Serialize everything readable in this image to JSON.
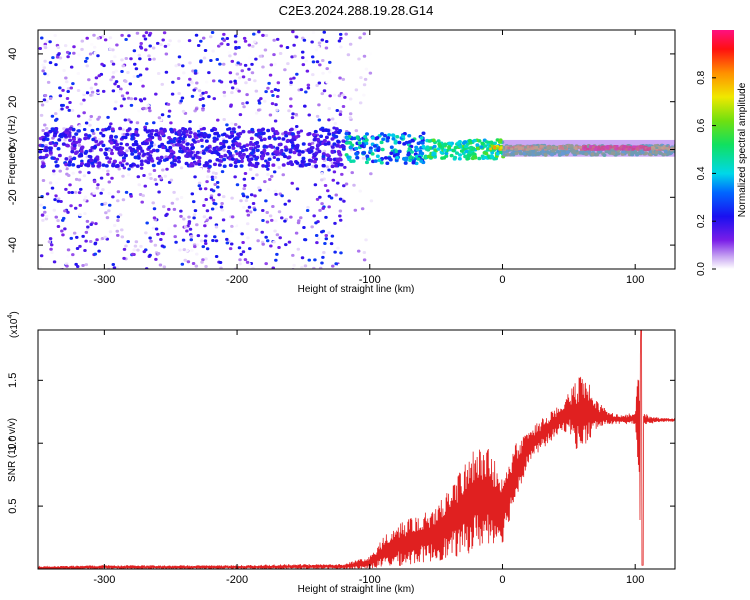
{
  "title": "C2E3.2024.288.19.28.G14",
  "chart_data": [
    {
      "type": "heatmap",
      "title": "C2E3.2024.288.19.28.G14",
      "xlabel": "Height of straight line (km)",
      "ylabel": "Frequency (Hz)",
      "xlim": [
        -350,
        130
      ],
      "ylim": [
        -50,
        50
      ],
      "x_ticks": [
        -300,
        -200,
        -100,
        0,
        100
      ],
      "x_tick_labels": [
        "-300",
        "-200",
        "-100",
        "0",
        "100"
      ],
      "y_ticks": [
        -40,
        -20,
        0,
        20,
        40
      ],
      "y_tick_labels": [
        "-40",
        "-20",
        "0",
        "20",
        "40"
      ],
      "colorbar": {
        "label": "Normalized spectral amplitude",
        "range": [
          0,
          1
        ],
        "ticks": [
          0.0,
          0.2,
          0.4,
          0.6,
          0.8
        ],
        "tick_labels": [
          "0.0",
          "0.2",
          "0.4",
          "0.6",
          "0.8"
        ],
        "colormap": "rainbow"
      },
      "regions": [
        {
          "x_range": [
            -350,
            -120
          ],
          "freq_range": [
            -50,
            50
          ],
          "amplitude": "low (0.0-0.3), diffuse noise"
        },
        {
          "x_range": [
            -120,
            -60
          ],
          "freq_range": [
            -10,
            10
          ],
          "amplitude": "0.2-0.5"
        },
        {
          "x_range": [
            -60,
            0
          ],
          "freq_range": [
            -5,
            6
          ],
          "amplitude": "0.4-0.6"
        },
        {
          "x_range": [
            0,
            130
          ],
          "freq_range": [
            -2,
            4
          ],
          "amplitude": "0.5-1.0, peak near +1 Hz"
        }
      ],
      "grid": false,
      "legend": "colorbar-right"
    },
    {
      "type": "line",
      "xlabel": "Height of straight line (km)",
      "ylabel": "SNR (10 * v/v)",
      "y_multiplier_label": "(x10",
      "y_multiplier_exp": "4",
      "y_multiplier_close": ")",
      "xlim": [
        -350,
        130
      ],
      "ylim": [
        0,
        1.9
      ],
      "x_ticks": [
        -300,
        -200,
        -100,
        0,
        100
      ],
      "x_tick_labels": [
        "-300",
        "-200",
        "-100",
        "0",
        "100"
      ],
      "y_ticks": [
        0.5,
        1.0,
        1.5
      ],
      "y_tick_labels": [
        "0.5",
        "1.0",
        "1.5"
      ],
      "series": [
        {
          "color": "#e02020",
          "x": [
            -350,
            -300,
            -250,
            -200,
            -150,
            -120,
            -100,
            -90,
            -80,
            -70,
            -60,
            -50,
            -40,
            -30,
            -20,
            -10,
            0,
            10,
            20,
            30,
            40,
            50,
            55,
            60,
            65,
            70,
            80,
            90,
            100,
            104,
            106,
            110,
            120,
            130
          ],
          "y_low": [
            0.0,
            0.0,
            0.0,
            0.0,
            0.0,
            0.0,
            0.0,
            0.01,
            0.02,
            0.03,
            0.05,
            0.06,
            0.08,
            0.1,
            0.15,
            0.2,
            0.2,
            0.55,
            0.85,
            0.95,
            1.05,
            1.1,
            0.95,
            0.95,
            1.0,
            1.1,
            1.15,
            1.15,
            1.15,
            0.0,
            1.15,
            1.15,
            1.17,
            1.17
          ],
          "y_high": [
            0.02,
            0.03,
            0.03,
            0.03,
            0.04,
            0.04,
            0.1,
            0.25,
            0.35,
            0.4,
            0.45,
            0.5,
            0.65,
            0.82,
            1.0,
            0.95,
            0.8,
            1.0,
            1.1,
            1.2,
            1.28,
            1.4,
            1.5,
            1.55,
            1.5,
            1.35,
            1.25,
            1.22,
            1.25,
            1.9,
            1.25,
            1.22,
            1.2,
            1.2
          ]
        }
      ],
      "grid": false
    }
  ]
}
